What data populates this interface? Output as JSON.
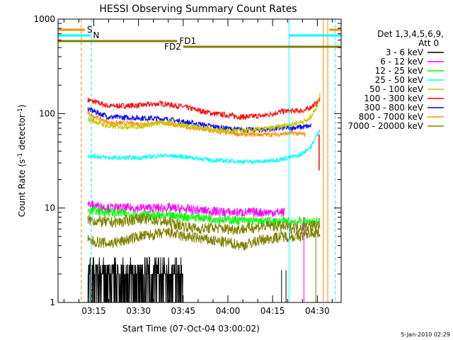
{
  "chart_data": {
    "type": "line",
    "title": "HESSI Observing Summary Count Rates",
    "xlabel": "Start Time (07-Oct-04 03:00:02)",
    "ylabel_main": "Count Rate (s",
    "ylabel_sup1": "-1",
    "ylabel_mid": " detector",
    "ylabel_sup2": "-1",
    "ylabel_end": ")",
    "yscale": "log",
    "ylim": [
      1,
      1000
    ],
    "xlim_minutes": [
      3.0,
      98.0
    ],
    "x_ticks": [
      {
        "m": 15,
        "label": "03:15"
      },
      {
        "m": 30,
        "label": "03:30"
      },
      {
        "m": 45,
        "label": "03:45"
      },
      {
        "m": 60,
        "label": "04:00"
      },
      {
        "m": 75,
        "label": "04:15"
      },
      {
        "m": 90,
        "label": "04:30"
      }
    ],
    "y_ticks": [
      {
        "v": 1,
        "label": "1"
      },
      {
        "v": 10,
        "label": "10"
      },
      {
        "v": 100,
        "label": "100"
      },
      {
        "v": 1000,
        "label": "1000"
      }
    ],
    "legend_header": [
      "Det 1,3,4,5,6,9,",
      "Att 0"
    ],
    "legend_placement": "right",
    "series": [
      {
        "name": "3 - 6 keV",
        "color": "#000000"
      },
      {
        "name": "6 - 12 keV",
        "color": "#ff00ff"
      },
      {
        "name": "12 - 25 keV",
        "color": "#00ff00"
      },
      {
        "name": "25 - 50 keV",
        "color": "#00ffff"
      },
      {
        "name": "50 - 100 keV",
        "color": "#c8c800"
      },
      {
        "name": "100 - 300 keV",
        "color": "#ff0000"
      },
      {
        "name": "300 - 800 keV",
        "color": "#0000ff"
      },
      {
        "name": "800 - 7000 keV",
        "color": "#ff8c00"
      },
      {
        "name": "7000 - 20000 keV",
        "color": "#808000"
      }
    ],
    "curves": {
      "red": {
        "start": 13,
        "end": 91,
        "pts": [
          [
            13,
            140
          ],
          [
            20,
            120
          ],
          [
            30,
            122
          ],
          [
            38,
            128
          ],
          [
            45,
            118
          ],
          [
            55,
            100
          ],
          [
            65,
            92
          ],
          [
            72,
            95
          ],
          [
            78,
            105
          ],
          [
            86,
            108
          ],
          [
            90,
            130
          ],
          [
            91,
            150
          ]
        ]
      },
      "blue": {
        "start": 13,
        "end": 88,
        "pts": [
          [
            13,
            112
          ],
          [
            20,
            92
          ],
          [
            30,
            90
          ],
          [
            38,
            88
          ],
          [
            45,
            82
          ],
          [
            55,
            73
          ],
          [
            62,
            68
          ],
          [
            70,
            67
          ],
          [
            78,
            70
          ],
          [
            85,
            72
          ],
          [
            88,
            74
          ]
        ]
      },
      "orange": {
        "start": 13,
        "end": 86,
        "pts": [
          [
            13,
            100
          ],
          [
            20,
            80
          ],
          [
            30,
            78
          ],
          [
            38,
            80
          ],
          [
            45,
            73
          ],
          [
            55,
            65
          ],
          [
            65,
            60
          ],
          [
            75,
            60
          ],
          [
            82,
            62
          ],
          [
            86,
            60
          ]
        ]
      },
      "yellow": {
        "start": 13,
        "end": 91,
        "pts": [
          [
            13,
            88
          ],
          [
            20,
            73
          ],
          [
            30,
            73
          ],
          [
            38,
            80
          ],
          [
            45,
            76
          ],
          [
            55,
            68
          ],
          [
            65,
            65
          ],
          [
            75,
            70
          ],
          [
            82,
            78
          ],
          [
            87,
            85
          ],
          [
            90,
            120
          ],
          [
            91,
            170
          ]
        ]
      },
      "cyan": {
        "start": 13,
        "end": 91,
        "pts": [
          [
            13,
            36
          ],
          [
            20,
            34
          ],
          [
            30,
            34
          ],
          [
            38,
            36
          ],
          [
            45,
            35
          ],
          [
            55,
            32
          ],
          [
            65,
            31
          ],
          [
            72,
            31
          ],
          [
            78,
            33
          ],
          [
            84,
            36
          ],
          [
            88,
            45
          ],
          [
            91,
            70
          ]
        ]
      },
      "magenta": {
        "start": 13,
        "end": 79,
        "pts": [
          [
            13,
            11
          ],
          [
            20,
            10
          ],
          [
            30,
            10
          ],
          [
            40,
            10
          ],
          [
            50,
            9.5
          ],
          [
            60,
            9
          ],
          [
            70,
            9
          ],
          [
            79,
            9
          ]
        ]
      },
      "green": {
        "start": 13,
        "end": 91,
        "pts": [
          [
            13,
            9.5
          ],
          [
            20,
            9
          ],
          [
            30,
            8.5
          ],
          [
            40,
            8.2
          ],
          [
            50,
            8
          ],
          [
            60,
            7.5
          ],
          [
            70,
            7.2
          ],
          [
            80,
            7.2
          ],
          [
            91,
            7.2
          ]
        ]
      },
      "olive": {
        "start": 13,
        "end": 91,
        "pts": [
          [
            13,
            7.5
          ],
          [
            20,
            7
          ],
          [
            25,
            7.2
          ],
          [
            30,
            7.8
          ],
          [
            35,
            7.5
          ],
          [
            40,
            7
          ],
          [
            45,
            6.5
          ],
          [
            50,
            6
          ],
          [
            55,
            6.2
          ],
          [
            60,
            6
          ],
          [
            65,
            6
          ],
          [
            70,
            6.3
          ],
          [
            75,
            6.5
          ],
          [
            82,
            6.2
          ],
          [
            88,
            6.5
          ],
          [
            91,
            6.5
          ]
        ]
      },
      "olive_low": {
        "start": 13,
        "end": 91,
        "pts": [
          [
            13,
            4.5
          ],
          [
            20,
            4.2
          ],
          [
            25,
            4.5
          ],
          [
            30,
            5
          ],
          [
            35,
            5.2
          ],
          [
            40,
            5.5
          ],
          [
            45,
            5
          ],
          [
            50,
            4.8
          ],
          [
            55,
            4.5
          ],
          [
            60,
            4.3
          ],
          [
            65,
            4
          ],
          [
            70,
            4.5
          ],
          [
            78,
            5
          ],
          [
            84,
            5
          ],
          [
            88,
            5.5
          ],
          [
            91,
            5.5
          ]
        ]
      }
    },
    "black_noise": {
      "start": 13,
      "end": 45
    },
    "state_bars": [
      {
        "label": "S",
        "color": "#ff8c00",
        "x0": 3,
        "x1": 12,
        "y": 1.0
      },
      {
        "label": "N",
        "color": "#00ffff",
        "x0": 3,
        "x1": 14,
        "y": 0.82
      },
      {
        "label": "FD1",
        "color": "#808000",
        "x0": 3,
        "x1": 43,
        "y": 0.66
      },
      {
        "label": "FD2",
        "color": "#808000",
        "x0": 45,
        "x1": 98,
        "y": 0.52
      }
    ],
    "vertical_lines": [
      {
        "m": 10.8,
        "color": "#ff8c00",
        "style": "dash"
      },
      {
        "m": 14.2,
        "color": "#00ffff",
        "style": "dash"
      },
      {
        "m": 80.5,
        "color": "#00ffff",
        "style": "solid"
      },
      {
        "m": 92.0,
        "color": "#ff8c00",
        "style": "solid"
      },
      {
        "m": 93.5,
        "color": "#ff8c00",
        "style": "solid"
      },
      {
        "m": 96.0,
        "color": "#00ffff",
        "style": "dash"
      }
    ]
  },
  "footer_date": "5-Jan-2010 02:29"
}
